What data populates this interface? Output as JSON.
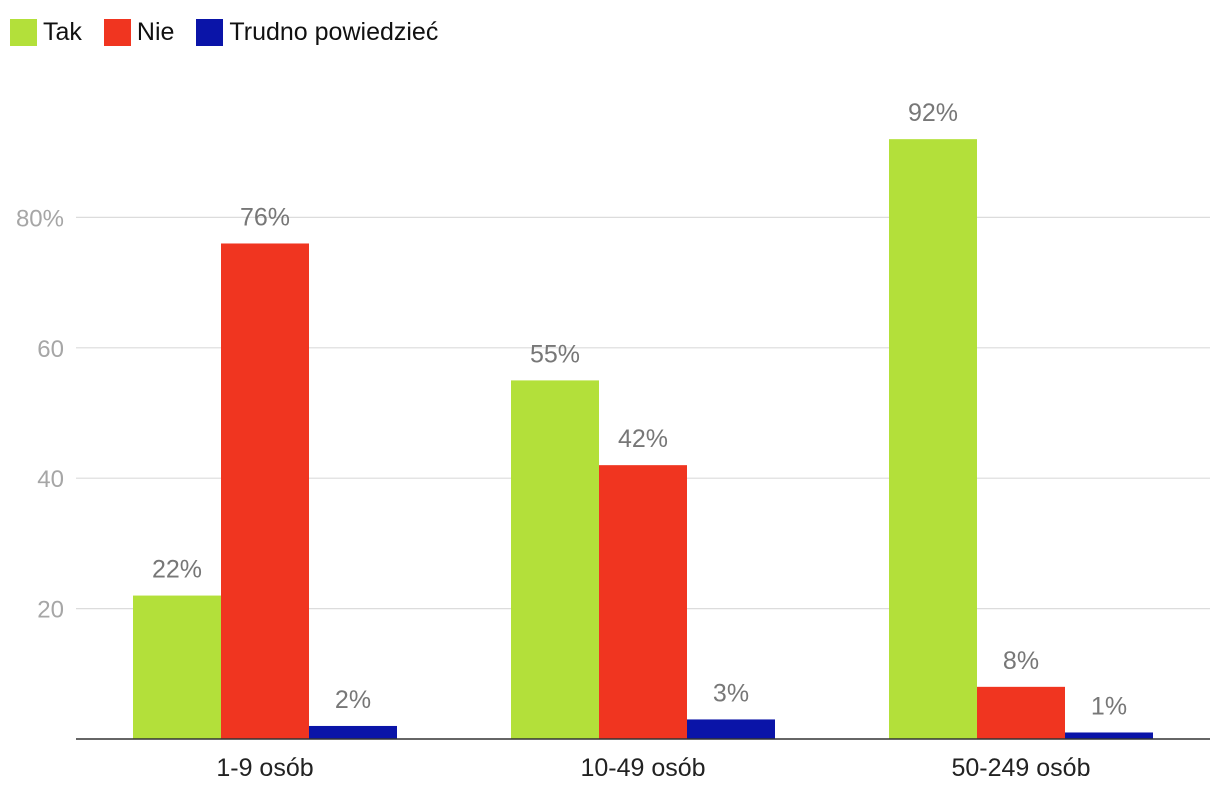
{
  "chart_data": {
    "type": "bar",
    "categories": [
      "1-9 osób",
      "10-49 osób",
      "50-249 osób"
    ],
    "series": [
      {
        "name": "Tak",
        "color": "#b3e03a",
        "values": [
          22,
          55,
          92
        ],
        "labels": [
          "22%",
          "55%",
          "92%"
        ]
      },
      {
        "name": "Nie",
        "color": "#f03520",
        "values": [
          76,
          42,
          8
        ],
        "labels": [
          "76%",
          "42%",
          "8%"
        ]
      },
      {
        "name": "Trudno powiedzieć",
        "color": "#0a14a8",
        "values": [
          2,
          3,
          1
        ],
        "labels": [
          "2%",
          "3%",
          "1%"
        ]
      }
    ],
    "y_ticks": [
      {
        "value": 20,
        "label": "20"
      },
      {
        "value": 40,
        "label": "40"
      },
      {
        "value": 60,
        "label": "60"
      },
      {
        "value": 80,
        "label": "80%"
      }
    ],
    "ylim": [
      0,
      100
    ],
    "grid": true,
    "legend_position": "top-left",
    "title": "",
    "xlabel": "",
    "ylabel": ""
  }
}
